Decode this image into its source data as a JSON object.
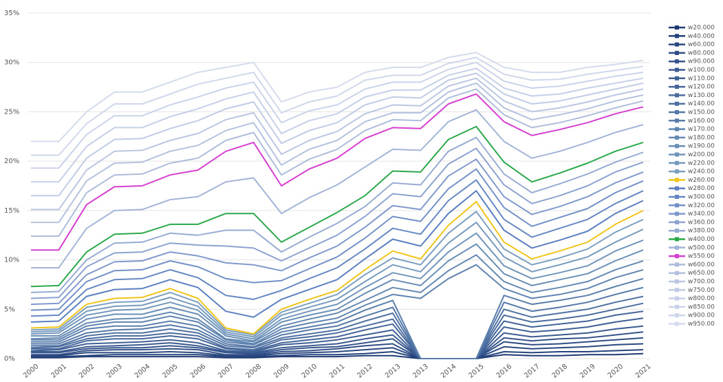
{
  "chart_data": {
    "type": "line",
    "categories": [
      "2000",
      "2001",
      "2002",
      "2003",
      "2004",
      "2005",
      "2006",
      "2007",
      "2008",
      "2009",
      "2010",
      "2011",
      "2012",
      "2013",
      "2013",
      "2014",
      "2015",
      "2016",
      "2017",
      "2018",
      "2019",
      "2020",
      "2021"
    ],
    "ylim": [
      0,
      35
    ],
    "yticks": [
      {
        "value": 0,
        "label": "0%"
      },
      {
        "value": 5,
        "label": "5%"
      },
      {
        "value": 10,
        "label": "10%"
      },
      {
        "value": 15,
        "label": "15%"
      },
      {
        "value": 20,
        "label": "20%"
      },
      {
        "value": 25,
        "label": "25%"
      },
      {
        "value": 30,
        "label": "30%"
      },
      {
        "value": 35,
        "label": "35%"
      }
    ],
    "grid": true,
    "legend": "right",
    "series": [
      {
        "name": "w20.000",
        "color": "#1f3b73",
        "values": [
          0.1,
          0.1,
          0.2,
          0.2,
          0.2,
          0.2,
          0.2,
          0.1,
          0.1,
          0.2,
          0.2,
          0.2,
          0.3,
          0.3,
          0,
          0,
          0,
          0.4,
          0.3,
          0.3,
          0.4,
          0.4,
          0.5
        ]
      },
      {
        "name": "w40.000",
        "color": "#24427c",
        "values": [
          0.2,
          0.2,
          0.3,
          0.4,
          0.4,
          0.4,
          0.4,
          0.2,
          0.2,
          0.3,
          0.4,
          0.4,
          0.5,
          0.7,
          0,
          0,
          0,
          0.7,
          0.6,
          0.7,
          0.7,
          0.8,
          0.9
        ]
      },
      {
        "name": "w60.000",
        "color": "#2a4880",
        "values": [
          0.3,
          0.3,
          0.6,
          0.6,
          0.6,
          0.7,
          0.6,
          0.3,
          0.3,
          0.5,
          0.6,
          0.7,
          0.9,
          1.1,
          0,
          0,
          0,
          1.2,
          1.0,
          1.1,
          1.2,
          1.4,
          1.5
        ]
      },
      {
        "name": "w80.000",
        "color": "#2f4e86",
        "values": [
          0.4,
          0.4,
          0.8,
          0.9,
          0.9,
          1.0,
          0.9,
          0.4,
          0.4,
          0.7,
          0.8,
          1.0,
          1.3,
          1.5,
          0,
          0,
          0,
          1.7,
          1.4,
          1.5,
          1.7,
          1.9,
          2.1
        ]
      },
      {
        "name": "w90.000",
        "color": "#34548b",
        "values": [
          0.6,
          0.6,
          1.0,
          1.1,
          1.1,
          1.3,
          1.1,
          0.6,
          0.5,
          0.9,
          1.1,
          1.2,
          1.6,
          2.0,
          0,
          0,
          0,
          2.1,
          1.8,
          2.0,
          2.1,
          2.4,
          2.7
        ]
      },
      {
        "name": "w100.00",
        "color": "#3a5a90",
        "values": [
          0.7,
          0.7,
          1.2,
          1.3,
          1.4,
          1.6,
          1.3,
          0.7,
          0.6,
          1.1,
          1.3,
          1.5,
          2.0,
          2.4,
          0,
          0,
          0,
          2.6,
          2.2,
          2.4,
          2.6,
          3.0,
          3.3
        ]
      },
      {
        "name": "w110.00",
        "color": "#3f6095",
        "values": [
          0.8,
          0.9,
          1.5,
          1.6,
          1.7,
          1.9,
          1.6,
          0.8,
          0.7,
          1.4,
          1.6,
          1.9,
          2.4,
          2.9,
          0,
          0,
          0,
          3.2,
          2.7,
          2.9,
          3.2,
          3.7,
          4.1
        ]
      },
      {
        "name": "w120.00",
        "color": "#44669a",
        "values": [
          1.0,
          1.0,
          1.8,
          2.0,
          2.0,
          2.3,
          2.0,
          1.0,
          0.8,
          1.6,
          1.9,
          2.2,
          2.9,
          3.5,
          0,
          0,
          0,
          3.8,
          3.2,
          3.5,
          3.8,
          4.4,
          4.8
        ]
      },
      {
        "name": "w130.00",
        "color": "#4a6c9f",
        "values": [
          1.1,
          1.2,
          2.0,
          2.3,
          2.3,
          2.6,
          2.3,
          1.1,
          0.9,
          1.9,
          2.2,
          2.6,
          3.3,
          4.0,
          0,
          0,
          0,
          4.4,
          3.7,
          4.0,
          4.4,
          5.0,
          5.6
        ]
      },
      {
        "name": "w140.00",
        "color": "#4f72a3",
        "values": [
          1.3,
          1.3,
          2.3,
          2.6,
          2.6,
          3.0,
          2.6,
          1.3,
          1.1,
          2.1,
          2.5,
          2.9,
          3.8,
          4.6,
          0,
          0,
          0,
          5.0,
          4.2,
          4.6,
          5.0,
          5.7,
          6.3
        ]
      },
      {
        "name": "w150.00",
        "color": "#5478a7",
        "values": [
          1.5,
          1.5,
          2.6,
          2.9,
          3.0,
          3.4,
          2.9,
          1.5,
          1.2,
          2.4,
          2.9,
          3.3,
          4.3,
          5.2,
          0,
          0,
          0,
          5.7,
          4.8,
          5.2,
          5.7,
          6.5,
          7.2
        ]
      },
      {
        "name": "w160.00",
        "color": "#5a7eab",
        "values": [
          1.7,
          1.7,
          3.0,
          3.3,
          3.3,
          3.8,
          3.3,
          1.7,
          1.4,
          2.7,
          3.2,
          3.7,
          4.9,
          5.9,
          0,
          0,
          0,
          6.4,
          5.5,
          5.9,
          6.4,
          7.3,
          8.1
        ]
      },
      {
        "name": "w170.00",
        "color": "#5f84b0",
        "values": [
          1.9,
          1.9,
          3.3,
          3.7,
          3.7,
          4.3,
          3.7,
          1.9,
          1.5,
          3.0,
          3.6,
          4.1,
          5.4,
          6.5,
          6.1,
          8.1,
          9.5,
          7.1,
          6.1,
          6.5,
          7.1,
          8.2,
          9.0
        ]
      },
      {
        "name": "w180.00",
        "color": "#6489b3",
        "values": [
          2.0,
          2.1,
          3.6,
          4.0,
          4.1,
          4.7,
          4.0,
          2.0,
          1.7,
          3.3,
          4.0,
          4.6,
          5.9,
          7.2,
          6.7,
          8.9,
          10.5,
          7.8,
          6.7,
          7.2,
          7.8,
          9.0,
          9.9
        ]
      },
      {
        "name": "w190.00",
        "color": "#6a8fb7",
        "values": [
          2.3,
          2.3,
          4.0,
          4.5,
          4.5,
          5.2,
          4.5,
          2.3,
          1.8,
          3.7,
          4.4,
          5.0,
          6.6,
          8.0,
          7.4,
          9.9,
          11.6,
          8.6,
          7.4,
          8.0,
          8.6,
          9.9,
          11.0
        ]
      },
      {
        "name": "w200.00",
        "color": "#7095bb",
        "values": [
          2.5,
          2.6,
          4.4,
          4.9,
          5.0,
          5.7,
          4.9,
          2.5,
          2.0,
          4.0,
          4.8,
          5.5,
          7.2,
          8.7,
          8.1,
          10.8,
          12.7,
          9.4,
          8.1,
          8.7,
          9.4,
          10.9,
          12.0
        ]
      },
      {
        "name": "w220.00",
        "color": "#769abe",
        "values": [
          2.7,
          2.8,
          4.8,
          5.3,
          5.4,
          6.2,
          5.3,
          2.7,
          2.2,
          4.4,
          5.2,
          6.0,
          7.8,
          9.5,
          8.8,
          11.7,
          13.8,
          10.3,
          8.8,
          9.5,
          10.3,
          11.8,
          13.1
        ]
      },
      {
        "name": "w240.00",
        "color": "#7c9fc1",
        "values": [
          2.9,
          3.0,
          5.2,
          5.7,
          5.8,
          6.7,
          5.7,
          2.9,
          2.4,
          4.7,
          5.6,
          6.5,
          8.5,
          10.2,
          9.5,
          12.7,
          14.9,
          11.1,
          9.5,
          10.2,
          11.1,
          12.8,
          14.1
        ]
      },
      {
        "name": "w260.00",
        "color": "#f0c419",
        "values": [
          3.1,
          3.2,
          5.5,
          6.1,
          6.2,
          7.1,
          6.1,
          3.1,
          2.5,
          5.0,
          6.0,
          6.9,
          9.0,
          10.9,
          10.1,
          13.5,
          15.9,
          11.8,
          10.1,
          10.9,
          11.8,
          13.6,
          15.0
        ]
      },
      {
        "name": "w280.00",
        "color": "#5b7fc0",
        "values": [
          3.7,
          3.8,
          6.3,
          7.0,
          7.1,
          8.0,
          7.2,
          4.8,
          4.2,
          6.0,
          7.0,
          8.0,
          10.1,
          12.1,
          11.4,
          14.7,
          17.0,
          13.0,
          11.2,
          12.0,
          12.9,
          14.7,
          16.0
        ]
      },
      {
        "name": "w300.00",
        "color": "#6587c4",
        "values": [
          4.3,
          4.4,
          7.0,
          8.0,
          8.1,
          9.0,
          8.2,
          6.4,
          6.0,
          6.9,
          8.1,
          9.2,
          11.1,
          13.2,
          12.6,
          16.0,
          18.1,
          14.1,
          12.3,
          13.2,
          14.1,
          15.7,
          17.0
        ]
      },
      {
        "name": "w320.00",
        "color": "#7390c8",
        "values": [
          4.9,
          5.0,
          7.8,
          8.9,
          9.0,
          9.9,
          9.3,
          8.1,
          7.7,
          7.9,
          9.1,
          10.3,
          12.2,
          14.4,
          13.9,
          17.2,
          19.2,
          15.3,
          13.4,
          14.3,
          15.2,
          16.8,
          18.0
        ]
      },
      {
        "name": "w340.00",
        "color": "#8099cc",
        "values": [
          5.5,
          5.6,
          8.5,
          9.8,
          9.9,
          10.8,
          10.4,
          9.7,
          9.5,
          8.9,
          10.2,
          11.4,
          13.3,
          15.5,
          15.1,
          18.5,
          20.2,
          16.4,
          14.6,
          15.4,
          16.4,
          17.8,
          18.9
        ]
      },
      {
        "name": "w360.00",
        "color": "#8ca2d0",
        "values": [
          6.1,
          6.2,
          9.3,
          10.7,
          10.8,
          11.7,
          11.5,
          11.4,
          11.2,
          9.9,
          11.2,
          12.5,
          14.4,
          16.7,
          16.4,
          19.7,
          21.3,
          17.6,
          15.7,
          16.5,
          17.5,
          18.9,
          19.9
        ]
      },
      {
        "name": "w380.00",
        "color": "#97abd3",
        "values": [
          6.7,
          6.8,
          10.0,
          11.7,
          11.8,
          12.7,
          12.5,
          13.0,
          13.0,
          10.8,
          12.3,
          13.7,
          15.4,
          17.8,
          17.6,
          21.0,
          22.4,
          18.7,
          16.8,
          17.7,
          18.7,
          19.9,
          20.9
        ]
      },
      {
        "name": "w400.00",
        "color": "#2aa84a",
        "values": [
          7.3,
          7.4,
          10.8,
          12.6,
          12.7,
          13.6,
          13.6,
          14.7,
          14.7,
          11.8,
          13.3,
          14.8,
          16.5,
          19.0,
          18.9,
          22.2,
          23.5,
          19.9,
          17.9,
          18.8,
          19.8,
          21.0,
          21.9
        ]
      },
      {
        "name": "w500.00",
        "color": "#a3b4d8",
        "values": [
          9.2,
          9.2,
          13.2,
          15.0,
          15.1,
          16.1,
          16.4,
          17.9,
          18.3,
          14.7,
          16.3,
          17.6,
          19.4,
          21.2,
          21.1,
          24.0,
          25.2,
          22.0,
          20.3,
          21.0,
          21.9,
          22.9,
          23.7
        ]
      },
      {
        "name": "w550.00",
        "color": "#d63fd0",
        "values": [
          11.0,
          11.0,
          15.6,
          17.4,
          17.5,
          18.6,
          19.1,
          21.0,
          21.9,
          17.5,
          19.2,
          20.3,
          22.3,
          23.4,
          23.3,
          25.8,
          26.8,
          24.0,
          22.6,
          23.2,
          23.9,
          24.8,
          25.5
        ]
      },
      {
        "name": "w600.00",
        "color": "#aebcdc",
        "values": [
          12.4,
          12.4,
          16.8,
          18.6,
          18.7,
          19.8,
          20.3,
          22.1,
          22.9,
          18.6,
          20.2,
          21.2,
          23.1,
          24.2,
          24.1,
          26.4,
          27.3,
          24.7,
          23.4,
          23.9,
          24.6,
          25.4,
          26.1
        ]
      },
      {
        "name": "w650.00",
        "color": "#b4c1df",
        "values": [
          13.8,
          13.8,
          18.0,
          19.8,
          19.9,
          21.0,
          21.6,
          23.1,
          23.9,
          19.6,
          21.2,
          22.1,
          24.0,
          24.9,
          24.9,
          27.0,
          27.9,
          25.4,
          24.2,
          24.7,
          25.3,
          26.1,
          26.7
        ]
      },
      {
        "name": "w700.00",
        "color": "#bac6e2",
        "values": [
          15.1,
          15.1,
          19.1,
          21.0,
          21.1,
          22.1,
          22.8,
          24.2,
          24.9,
          20.7,
          22.1,
          23.0,
          24.8,
          25.7,
          25.6,
          27.6,
          28.4,
          26.1,
          25.0,
          25.4,
          26.0,
          26.7,
          27.3
        ]
      },
      {
        "name": "w750.00",
        "color": "#c0cbe5",
        "values": [
          16.5,
          16.5,
          20.3,
          22.2,
          22.3,
          23.3,
          24.1,
          25.3,
          26.0,
          21.8,
          23.1,
          23.9,
          25.7,
          26.5,
          26.4,
          28.2,
          28.9,
          26.8,
          25.8,
          26.1,
          26.7,
          27.3,
          27.9
        ]
      },
      {
        "name": "w800.00",
        "color": "#c5cfe7",
        "values": [
          17.9,
          17.9,
          21.5,
          23.4,
          23.4,
          24.5,
          25.3,
          26.3,
          27.0,
          22.8,
          24.1,
          24.8,
          26.5,
          27.2,
          27.2,
          28.7,
          29.4,
          27.4,
          26.6,
          26.8,
          27.4,
          27.9,
          28.4
        ]
      },
      {
        "name": "w850.00",
        "color": "#cad3e9",
        "values": [
          19.3,
          19.3,
          22.7,
          24.6,
          24.6,
          25.7,
          26.5,
          27.4,
          28.0,
          23.9,
          25.1,
          25.7,
          27.3,
          28.0,
          28.0,
          29.3,
          30.0,
          28.1,
          27.4,
          27.6,
          28.1,
          28.6,
          29.0
        ]
      },
      {
        "name": "w900.00",
        "color": "#cfd7eb",
        "values": [
          20.6,
          20.6,
          23.8,
          25.8,
          25.8,
          26.8,
          27.8,
          28.4,
          29.0,
          24.9,
          26.0,
          26.6,
          28.2,
          28.7,
          28.7,
          29.9,
          30.5,
          28.8,
          28.2,
          28.3,
          28.8,
          29.2,
          29.6
        ]
      },
      {
        "name": "w950.00",
        "color": "#d4dbed",
        "values": [
          22,
          22,
          25,
          27,
          27,
          28,
          29,
          29.5,
          30,
          26,
          27,
          27.5,
          29,
          29.5,
          29.5,
          30.5,
          31,
          29.5,
          29,
          29,
          29.5,
          29.8,
          30.2
        ]
      }
    ]
  }
}
